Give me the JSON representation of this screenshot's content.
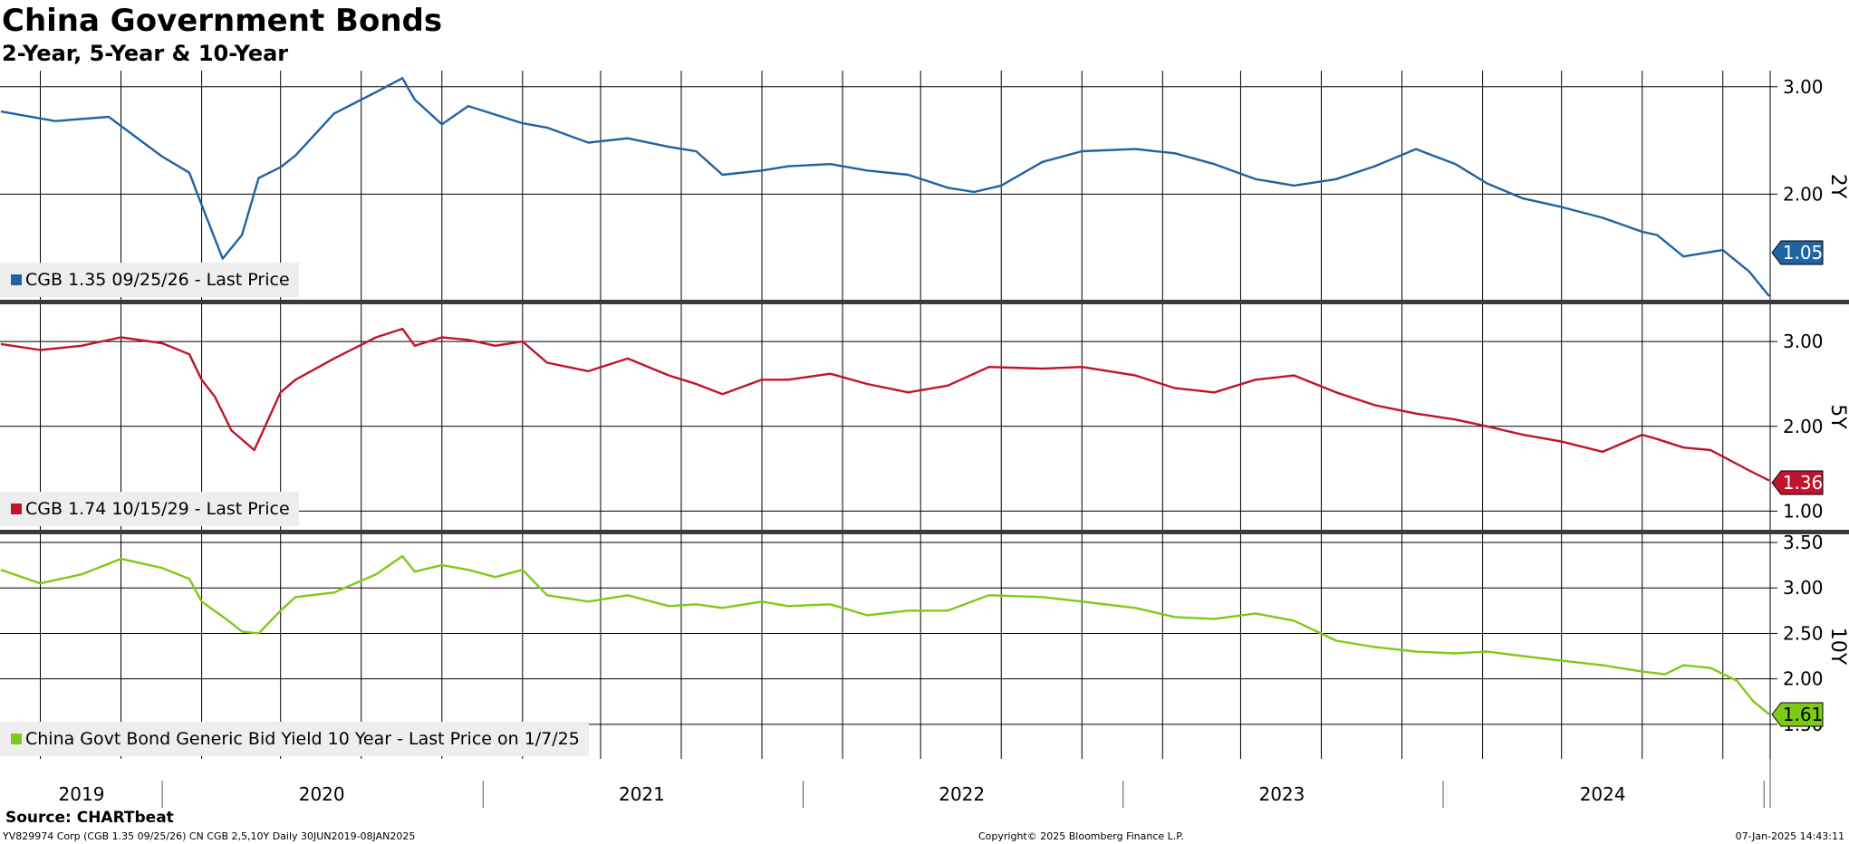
{
  "header": {
    "title": "China Government Bonds",
    "subtitle": "2-Year, 5-Year & 10-Year"
  },
  "footer": {
    "source": "Source: CHARTbeat",
    "ticker_info": "YV829974 Corp (CGB 1.35 09/25/26) CN CGB 2,5,10Y  Daily 30JUN2019-08JAN2025",
    "copyright": "Copyright© 2025 Bloomberg Finance L.P.",
    "timestamp": "07-Jan-2025 14:43:11"
  },
  "colors": {
    "blue": "#1f63a4",
    "red": "#c0142c",
    "green": "#7ecb16",
    "grid": "#000000",
    "separator": "#3a3a3a",
    "legend_bg": "#eeeeee"
  },
  "chart_data": [
    {
      "type": "line",
      "panel_label": "2Y",
      "legend": "CGB 1.35 09/25/26 - Last Price",
      "last_value": "1.05",
      "y_ticks": [
        "3.00",
        "2.00"
      ],
      "ylim": [
        1.0,
        3.15
      ],
      "series": [
        {
          "name": "CGB 1.35 09/25/26 - Last Price",
          "x": [
            "2019-07-01",
            "2019-09-01",
            "2019-11-01",
            "2020-01-01",
            "2020-02-01",
            "2020-02-15",
            "2020-03-10",
            "2020-04-01",
            "2020-04-20",
            "2020-05-15",
            "2020-06-01",
            "2020-07-15",
            "2020-09-01",
            "2020-10-01",
            "2020-10-15",
            "2020-11-15",
            "2020-12-15",
            "2021-01-15",
            "2021-02-15",
            "2021-03-15",
            "2021-05-01",
            "2021-06-15",
            "2021-08-01",
            "2021-09-01",
            "2021-10-01",
            "2021-11-15",
            "2021-12-15",
            "2022-02-01",
            "2022-03-15",
            "2022-05-01",
            "2022-06-15",
            "2022-07-15",
            "2022-08-15",
            "2022-10-01",
            "2022-11-15",
            "2023-01-15",
            "2023-03-01",
            "2023-04-15",
            "2023-06-01",
            "2023-07-15",
            "2023-09-01",
            "2023-10-15",
            "2023-12-01",
            "2024-01-15",
            "2024-02-20",
            "2024-04-01",
            "2024-05-15",
            "2024-07-01",
            "2024-08-15",
            "2024-09-01",
            "2024-10-01",
            "2024-11-15",
            "2024-12-15",
            "2025-01-07"
          ],
          "values": [
            2.77,
            2.68,
            2.72,
            2.35,
            2.2,
            1.9,
            1.4,
            1.62,
            2.15,
            2.25,
            2.36,
            2.75,
            2.95,
            3.08,
            2.88,
            2.65,
            2.82,
            2.74,
            2.66,
            2.62,
            2.48,
            2.52,
            2.44,
            2.4,
            2.18,
            2.22,
            2.26,
            2.28,
            2.22,
            2.18,
            2.06,
            2.02,
            2.08,
            2.3,
            2.4,
            2.42,
            2.38,
            2.28,
            2.14,
            2.08,
            2.14,
            2.26,
            2.42,
            2.28,
            2.1,
            1.96,
            1.88,
            1.78,
            1.65,
            1.62,
            1.42,
            1.48,
            1.28,
            1.05
          ]
        }
      ]
    },
    {
      "type": "line",
      "panel_label": "5Y",
      "legend": "CGB 1.74 10/15/29 - Last Price",
      "last_value": "1.36",
      "y_ticks": [
        "3.00",
        "2.00",
        "1.00"
      ],
      "ylim": [
        0.78,
        3.45
      ],
      "series": [
        {
          "name": "CGB 1.74 10/15/29 - Last Price",
          "x": [
            "2019-07-01",
            "2019-08-15",
            "2019-10-01",
            "2019-11-15",
            "2020-01-01",
            "2020-02-01",
            "2020-02-15",
            "2020-03-01",
            "2020-03-20",
            "2020-04-15",
            "2020-05-15",
            "2020-06-01",
            "2020-07-15",
            "2020-09-01",
            "2020-10-01",
            "2020-10-15",
            "2020-11-15",
            "2020-12-15",
            "2021-01-15",
            "2021-02-15",
            "2021-03-15",
            "2021-05-01",
            "2021-06-15",
            "2021-08-01",
            "2021-09-01",
            "2021-10-01",
            "2021-11-15",
            "2021-12-15",
            "2022-02-01",
            "2022-03-15",
            "2022-05-01",
            "2022-06-15",
            "2022-08-01",
            "2022-10-01",
            "2022-11-15",
            "2023-01-15",
            "2023-03-01",
            "2023-04-15",
            "2023-06-01",
            "2023-07-15",
            "2023-09-01",
            "2023-10-15",
            "2023-12-01",
            "2024-01-15",
            "2024-02-20",
            "2024-04-01",
            "2024-05-15",
            "2024-07-01",
            "2024-08-15",
            "2024-09-01",
            "2024-10-01",
            "2024-11-01",
            "2024-12-15",
            "2025-01-07"
          ],
          "values": [
            2.97,
            2.9,
            2.95,
            3.05,
            2.98,
            2.85,
            2.55,
            2.35,
            1.95,
            1.72,
            2.4,
            2.55,
            2.8,
            3.05,
            3.15,
            2.95,
            3.05,
            3.02,
            2.95,
            3.0,
            2.75,
            2.65,
            2.8,
            2.6,
            2.5,
            2.38,
            2.55,
            2.55,
            2.62,
            2.5,
            2.4,
            2.48,
            2.7,
            2.68,
            2.7,
            2.6,
            2.45,
            2.4,
            2.55,
            2.6,
            2.4,
            2.25,
            2.15,
            2.08,
            2.0,
            1.9,
            1.82,
            1.7,
            1.9,
            1.85,
            1.75,
            1.72,
            1.48,
            1.36
          ]
        }
      ]
    },
    {
      "type": "line",
      "panel_label": "10Y",
      "legend": "China Govt Bond Generic Bid Yield 10 Year - Last Price on 1/7/25",
      "last_value": "1.61",
      "y_ticks": [
        "3.50",
        "3.00",
        "2.50",
        "2.00",
        "1.50"
      ],
      "ylim": [
        1.12,
        3.6
      ],
      "series": [
        {
          "name": "China Govt Bond Generic Bid Yield 10 Year - Last Price on 1/7/25",
          "x": [
            "2019-07-01",
            "2019-08-15",
            "2019-10-01",
            "2019-11-15",
            "2020-01-01",
            "2020-02-01",
            "2020-02-15",
            "2020-03-15",
            "2020-04-01",
            "2020-04-20",
            "2020-05-15",
            "2020-06-01",
            "2020-07-15",
            "2020-09-01",
            "2020-10-01",
            "2020-10-15",
            "2020-11-15",
            "2020-12-15",
            "2021-01-15",
            "2021-02-15",
            "2021-03-15",
            "2021-05-01",
            "2021-06-15",
            "2021-08-01",
            "2021-09-01",
            "2021-10-01",
            "2021-11-15",
            "2021-12-15",
            "2022-02-01",
            "2022-03-15",
            "2022-05-01",
            "2022-06-15",
            "2022-08-01",
            "2022-10-01",
            "2022-11-15",
            "2023-01-15",
            "2023-03-01",
            "2023-04-15",
            "2023-06-01",
            "2023-07-15",
            "2023-09-01",
            "2023-10-15",
            "2023-12-01",
            "2024-01-15",
            "2024-02-20",
            "2024-04-01",
            "2024-05-15",
            "2024-07-01",
            "2024-08-15",
            "2024-09-10",
            "2024-10-01",
            "2024-11-01",
            "2024-12-01",
            "2024-12-20",
            "2025-01-07"
          ],
          "values": [
            3.2,
            3.05,
            3.15,
            3.32,
            3.22,
            3.1,
            2.85,
            2.65,
            2.52,
            2.5,
            2.75,
            2.9,
            2.95,
            3.15,
            3.35,
            3.18,
            3.25,
            3.2,
            3.12,
            3.2,
            2.92,
            2.85,
            2.92,
            2.8,
            2.82,
            2.78,
            2.85,
            2.8,
            2.82,
            2.7,
            2.75,
            2.75,
            2.92,
            2.9,
            2.85,
            2.78,
            2.68,
            2.66,
            2.72,
            2.64,
            2.42,
            2.35,
            2.3,
            2.28,
            2.3,
            2.25,
            2.2,
            2.15,
            2.08,
            2.05,
            2.15,
            2.12,
            1.98,
            1.75,
            1.61
          ]
        }
      ]
    }
  ],
  "x_axis": {
    "year_labels": [
      "2019",
      "2020",
      "2021",
      "2022",
      "2023",
      "2024"
    ],
    "label_dates": [
      "2019-10-01",
      "2020-07-01",
      "2021-07-01",
      "2022-07-01",
      "2023-07-01",
      "2024-07-01"
    ],
    "year_starts": [
      "2020-01-01",
      "2021-01-01",
      "2022-01-01",
      "2023-01-01",
      "2024-01-01",
      "2025-01-01"
    ],
    "start_date": "2019-06-30",
    "end_date": "2025-01-08"
  }
}
